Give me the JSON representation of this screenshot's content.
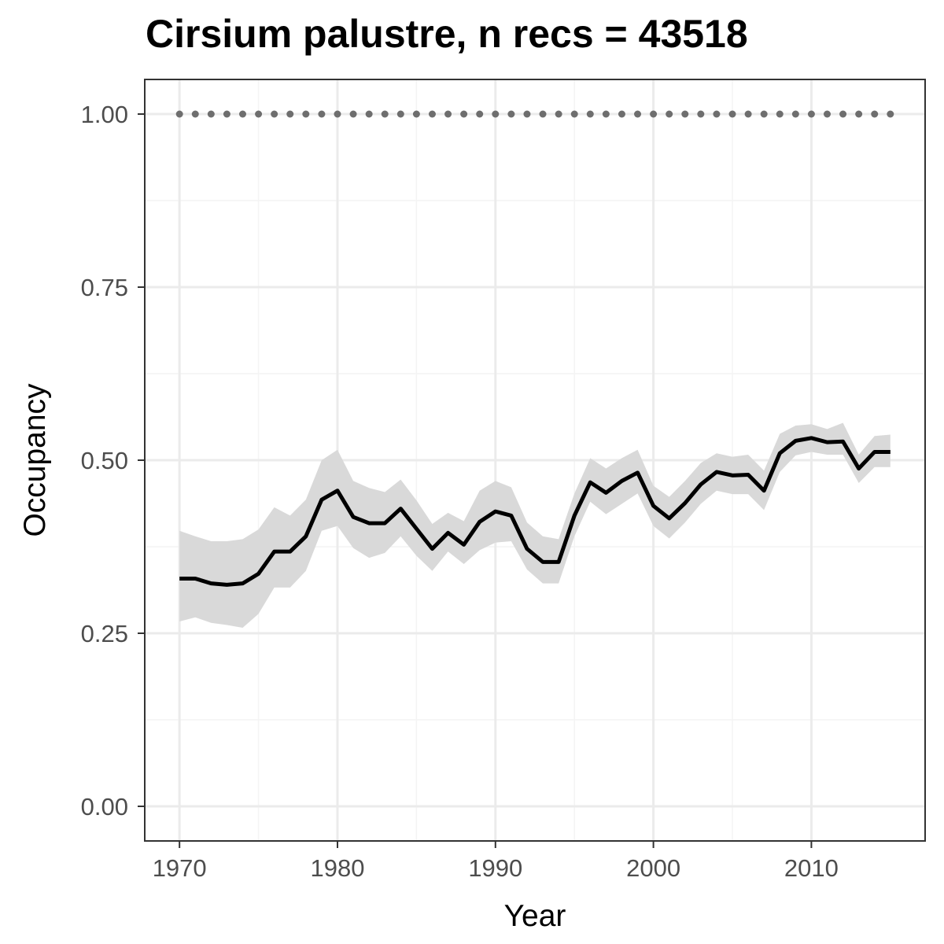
{
  "chart_data": {
    "type": "line",
    "title": "Cirsium palustre, n recs = 43518",
    "xlabel": "Year",
    "ylabel": "Occupancy",
    "xlim": [
      1967.8,
      2017.2
    ],
    "ylim": [
      -0.05,
      1.05
    ],
    "x_ticks": [
      1970,
      1980,
      1990,
      2000,
      2010
    ],
    "y_ticks": [
      0.0,
      0.25,
      0.5,
      0.75,
      1.0
    ],
    "x_tick_labels": [
      "1970",
      "1980",
      "1990",
      "2000",
      "2010"
    ],
    "y_tick_labels": [
      "0.00",
      "0.25",
      "0.50",
      "0.75",
      "1.00"
    ],
    "grid": true,
    "series": [
      {
        "kind": "mean-line",
        "color": "#000000",
        "x": [
          1970,
          1971,
          1972,
          1973,
          1974,
          1975,
          1976,
          1977,
          1978,
          1979,
          1980,
          1981,
          1982,
          1983,
          1984,
          1985,
          1986,
          1987,
          1988,
          1989,
          1990,
          1991,
          1992,
          1993,
          1994,
          1995,
          1996,
          1997,
          1998,
          1999,
          2000,
          2001,
          2002,
          2003,
          2004,
          2005,
          2006,
          2007,
          2008,
          2009,
          2010,
          2011,
          2012,
          2013,
          2014,
          2015
        ],
        "y": [
          0.329,
          0.329,
          0.322,
          0.32,
          0.322,
          0.336,
          0.368,
          0.368,
          0.39,
          0.443,
          0.456,
          0.418,
          0.409,
          0.409,
          0.43,
          0.401,
          0.372,
          0.395,
          0.378,
          0.411,
          0.426,
          0.42,
          0.372,
          0.353,
          0.353,
          0.42,
          0.468,
          0.453,
          0.47,
          0.482,
          0.434,
          0.416,
          0.438,
          0.465,
          0.483,
          0.478,
          0.479,
          0.456,
          0.51,
          0.528,
          0.532,
          0.526,
          0.527,
          0.488,
          0.512,
          0.512
        ],
        "lower": [
          0.267,
          0.273,
          0.265,
          0.262,
          0.258,
          0.278,
          0.316,
          0.316,
          0.34,
          0.398,
          0.405,
          0.373,
          0.359,
          0.366,
          0.39,
          0.362,
          0.34,
          0.368,
          0.35,
          0.37,
          0.381,
          0.383,
          0.342,
          0.322,
          0.322,
          0.39,
          0.44,
          0.422,
          0.437,
          0.452,
          0.405,
          0.387,
          0.41,
          0.437,
          0.456,
          0.451,
          0.451,
          0.428,
          0.483,
          0.507,
          0.512,
          0.508,
          0.508,
          0.467,
          0.49,
          0.49
        ],
        "upper": [
          0.398,
          0.39,
          0.383,
          0.383,
          0.386,
          0.4,
          0.432,
          0.42,
          0.443,
          0.5,
          0.515,
          0.47,
          0.46,
          0.454,
          0.472,
          0.442,
          0.408,
          0.424,
          0.412,
          0.456,
          0.47,
          0.461,
          0.41,
          0.39,
          0.386,
          0.452,
          0.503,
          0.488,
          0.503,
          0.515,
          0.463,
          0.447,
          0.47,
          0.496,
          0.51,
          0.505,
          0.508,
          0.485,
          0.538,
          0.55,
          0.552,
          0.545,
          0.554,
          0.508,
          0.535,
          0.537
        ]
      },
      {
        "kind": "reference-dots",
        "color": "#6e6e6e",
        "x": [
          1970,
          1971,
          1972,
          1973,
          1974,
          1975,
          1976,
          1977,
          1978,
          1979,
          1980,
          1981,
          1982,
          1983,
          1984,
          1985,
          1986,
          1987,
          1988,
          1989,
          1990,
          1991,
          1992,
          1993,
          1994,
          1995,
          1996,
          1997,
          1998,
          1999,
          2000,
          2001,
          2002,
          2003,
          2004,
          2005,
          2006,
          2007,
          2008,
          2009,
          2010,
          2011,
          2012,
          2013,
          2014,
          2015
        ],
        "y": [
          1,
          1,
          1,
          1,
          1,
          1,
          1,
          1,
          1,
          1,
          1,
          1,
          1,
          1,
          1,
          1,
          1,
          1,
          1,
          1,
          1,
          1,
          1,
          1,
          1,
          1,
          1,
          1,
          1,
          1,
          1,
          1,
          1,
          1,
          1,
          1,
          1,
          1,
          1,
          1,
          1,
          1,
          1,
          1,
          1,
          1
        ]
      }
    ],
    "colors": {
      "ribbon": "#d9d9d9",
      "grid_major": "#ebebeb",
      "grid_minor": "#f4f4f4",
      "panel_border": "#333333",
      "tick_text": "#4d4d4d"
    }
  }
}
